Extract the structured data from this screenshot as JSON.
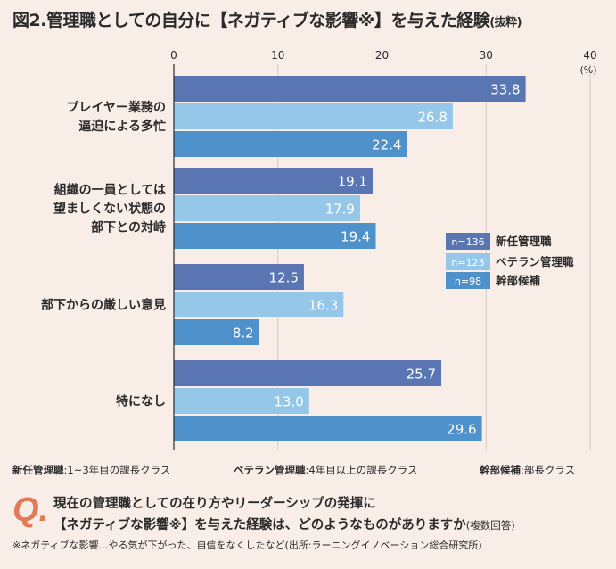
{
  "title": {
    "main": "図2.管理職としての自分に【ネガティブな影響※】を与えた経験",
    "sub": "(抜粋)"
  },
  "chart_data": {
    "type": "bar",
    "orientation": "horizontal",
    "xlim": [
      0,
      40
    ],
    "ticks": [
      "0",
      "10",
      "20",
      "30",
      "40"
    ],
    "unit": "(%)",
    "categories": [
      [
        "プレイヤー業務の",
        "逼迫による多忙"
      ],
      [
        "組織の一員としては",
        "望ましくない状態の",
        "部下との対峙"
      ],
      [
        "部下からの厳しい意見"
      ],
      [
        "特になし"
      ]
    ],
    "series": [
      {
        "name": "新任管理職",
        "n": "n=136",
        "color": "#5a76b2",
        "values": [
          33.8,
          19.1,
          12.5,
          25.7
        ],
        "labels": [
          "33.8",
          "19.1",
          "12.5",
          "25.7"
        ]
      },
      {
        "name": "ベテラン管理職",
        "n": "n=123",
        "color": "#95c8e8",
        "values": [
          26.8,
          17.9,
          16.3,
          13.0
        ],
        "labels": [
          "26.8",
          "17.9",
          "16.3",
          "13.0"
        ]
      },
      {
        "name": "幹部候補",
        "n": "n=98",
        "color": "#4f91cb",
        "values": [
          22.4,
          19.4,
          8.2,
          29.6
        ],
        "labels": [
          "22.4",
          "19.4",
          "8.2",
          "29.6"
        ]
      }
    ]
  },
  "notes": [
    {
      "term": "新任管理職",
      "desc": ":1~3年目の課長クラス"
    },
    {
      "term": "ベテラン管理職",
      "desc": ":4年目以上の課長クラス"
    },
    {
      "term": "幹部候補",
      "desc": ":部長クラス"
    }
  ],
  "question": {
    "mark": "Q.",
    "line1": "現在の管理職としての在り方やリーダーシップの発揮に",
    "line2": "【ネガティブな影響※】を与えた経験は、どのようなものがありますか",
    "line2_sub": "(複数回答)"
  },
  "footnote": "※ネガティブな影響…やる気が下がった、自信をなくしたなど(出所:ラーニングイノベーション総合研究所)"
}
